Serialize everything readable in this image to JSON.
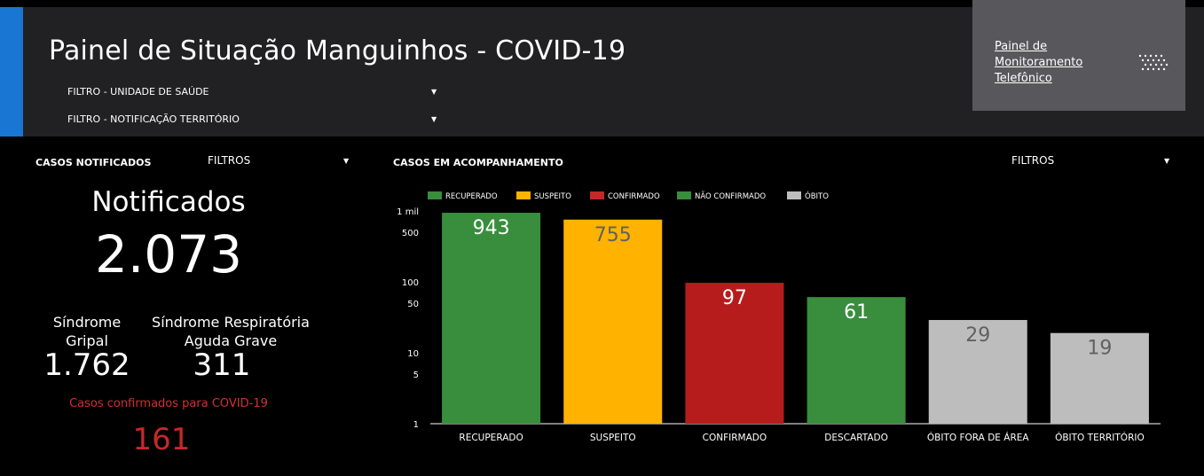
{
  "header": {
    "title": "Painel de Situação Manguinhos - COVID-19",
    "filter_unit": "FILTRO - UNIDADE DE SAÚDE",
    "filter_territory": "FILTRO - NOTIFICAÇÃO TERRITÓRIO",
    "monitor_link": "Painel de Monitoramento Telefônico",
    "accent_color": "#1976d2"
  },
  "left_panel": {
    "section_label": "CASOS NOTIFICADOS",
    "filter_label": "FILTROS",
    "notified_label": "Notificados",
    "notified_value": "2.073",
    "sg_label_line1": "Síndrome",
    "sg_label_line2": "Gripal",
    "sg_value": "1.762",
    "srag_label_line1": "Síndrome Respiratória",
    "srag_label_line2": "Aguda Grave",
    "srag_value": "311",
    "confirmed_label": "Casos confirmados para COVID-19",
    "confirmed_value": "161"
  },
  "right_panel": {
    "section_label": "CASOS EM ACOMPANHAMENTO",
    "filter_label": "FILTROS"
  },
  "chart_data": {
    "type": "bar",
    "categories": [
      "RECUPERADO",
      "SUSPEITO",
      "CONFIRMADO",
      "DESCARTADO",
      "ÓBITO FORA DE ÁREA",
      "ÓBITO TERRITÓRIO"
    ],
    "values": [
      943,
      755,
      97,
      61,
      29,
      19
    ],
    "data_labels": [
      "943",
      "755",
      "97",
      "61",
      "29",
      "19"
    ],
    "bar_colors": [
      "#388e3c",
      "#ffb300",
      "#b71c1c",
      "#388e3c",
      "#bdbdbd",
      "#bdbdbd"
    ],
    "label_colors": [
      "#ffffff",
      "#616161",
      "#ffffff",
      "#ffffff",
      "#616161",
      "#616161"
    ],
    "legend": [
      {
        "name": "RECUPERADO",
        "color": "#388e3c"
      },
      {
        "name": "SUSPEITO",
        "color": "#ffb300"
      },
      {
        "name": "CONFIRMADO",
        "color": "#c62828"
      },
      {
        "name": "NÃO CONFIRMADO",
        "color": "#388e3c"
      },
      {
        "name": "ÓBITO",
        "color": "#bdbdbd"
      }
    ],
    "y_scale": "log",
    "ylim": [
      1,
      1000
    ],
    "y_ticks": [
      1,
      5,
      10,
      50,
      100,
      500,
      1000
    ],
    "y_tick_labels": [
      "1",
      "5",
      "10",
      "50",
      "100",
      "500",
      "1 mil"
    ],
    "grid": false,
    "legend_position": "top"
  }
}
